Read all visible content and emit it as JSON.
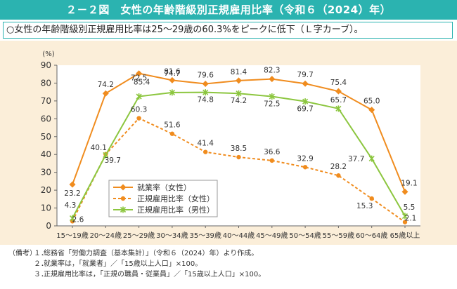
{
  "figure": {
    "title": "２－２図　女性の年齢階級別正規雇用比率（令和６（2024）年）",
    "summary": "○女性の年齢階級別正規雇用比率は25～29歳の60.3%をピークに低下（Ｌ字カーブ）。"
  },
  "chart_data": {
    "type": "line",
    "title": "女性の年齢階級別正規雇用比率（令和６（2024）年）",
    "ylabel": "(%)",
    "ylim": [
      0,
      90
    ],
    "yticks": [
      0,
      10,
      20,
      30,
      40,
      50,
      60,
      70,
      80,
      90
    ],
    "categories": [
      "15～19歳",
      "20～24歳",
      "25～29歳",
      "30～34歳",
      "35～39歳",
      "40～44歳",
      "45～49歳",
      "50～54歳",
      "55～59歳",
      "60～64歳",
      "65歳以上"
    ],
    "series": [
      {
        "name": "就業率（女性）",
        "color": "#f08c1e",
        "dash": false,
        "marker": "diamond",
        "values": [
          23.2,
          74.2,
          85.4,
          81.6,
          79.6,
          81.4,
          82.3,
          79.7,
          75.4,
          65.0,
          19.1
        ],
        "labels": [
          "23.2",
          "74.2",
          "85.4",
          "81.6",
          "79.6",
          "81.4",
          "82.3",
          "79.7",
          "75.4",
          "65.0",
          "19.1"
        ]
      },
      {
        "name": "正規雇用比率（女性）",
        "color": "#f08c1e",
        "dash": true,
        "marker": "circle",
        "values": [
          2.6,
          40.1,
          60.3,
          51.6,
          41.4,
          38.5,
          36.6,
          32.9,
          28.2,
          15.3,
          2.1
        ],
        "labels": [
          "2.6",
          "40.1",
          "60.3",
          "51.6",
          "41.4",
          "38.5",
          "36.6",
          "32.9",
          "28.2",
          "15.3",
          "2.1"
        ]
      },
      {
        "name": "正規雇用比率（男性）",
        "color": "#8cc63f",
        "dash": false,
        "marker": "x",
        "values": [
          4.3,
          39.7,
          72.5,
          74.7,
          74.8,
          74.2,
          72.5,
          69.7,
          65.7,
          37.7,
          5.5
        ],
        "labels": [
          "4.3",
          "39.7",
          "72.5",
          "74.7",
          "74.8",
          "74.2",
          "72.5",
          "69.7",
          "65.7",
          "37.7",
          "5.5"
        ]
      }
    ]
  },
  "notes": {
    "lead": "（備考）",
    "items": [
      {
        "num": "１．",
        "text": "総務省「労働力調査（基本集計）」（令和６（2024）年）より作成。"
      },
      {
        "num": "２．",
        "text": "就業率は，「就業者」／「15歳以上人口」×100。"
      },
      {
        "num": "３．",
        "text": "正規雇用比率は，「正規の職員・従業員」／「15歳以上人口」×100。"
      }
    ]
  }
}
